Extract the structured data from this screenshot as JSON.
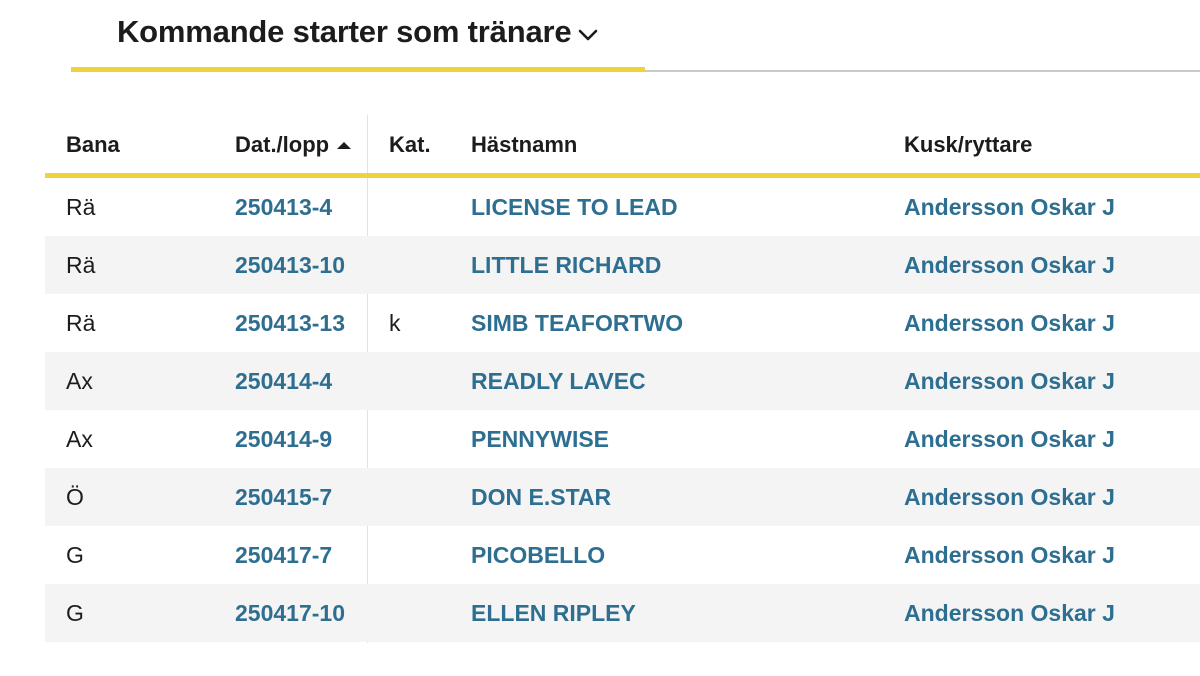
{
  "header": {
    "title": "Kommande starter som tränare",
    "dropdown_icon": "chevron-down-icon"
  },
  "colors": {
    "accent_yellow": "#f0d23a",
    "link_blue": "#2e6f91",
    "row_alt_bg": "#f4f4f4"
  },
  "table": {
    "columns": {
      "bana": "Bana",
      "date": "Dat./lopp",
      "kat": "Kat.",
      "horse": "Hästnamn",
      "kusk": "Kusk/ryttare"
    },
    "sort": {
      "column": "date",
      "direction": "ascending",
      "icon": "sort-ascending-icon"
    },
    "rows": [
      {
        "bana": "Rä",
        "date": "250413-4",
        "kat": "",
        "horse": "LICENSE TO LEAD",
        "kusk": "Andersson Oskar J"
      },
      {
        "bana": "Rä",
        "date": "250413-10",
        "kat": "",
        "horse": "LITTLE RICHARD",
        "kusk": "Andersson Oskar J"
      },
      {
        "bana": "Rä",
        "date": "250413-13",
        "kat": "k",
        "horse": "SIMB TEAFORTWO",
        "kusk": "Andersson Oskar J"
      },
      {
        "bana": "Ax",
        "date": "250414-4",
        "kat": "",
        "horse": "READLY LAVEC",
        "kusk": "Andersson Oskar J"
      },
      {
        "bana": "Ax",
        "date": "250414-9",
        "kat": "",
        "horse": "PENNYWISE",
        "kusk": "Andersson Oskar J"
      },
      {
        "bana": "Ö",
        "date": "250415-7",
        "kat": "",
        "horse": "DON E.STAR",
        "kusk": "Andersson Oskar J"
      },
      {
        "bana": "G",
        "date": "250417-7",
        "kat": "",
        "horse": "PICOBELLO",
        "kusk": "Andersson Oskar J"
      },
      {
        "bana": "G",
        "date": "250417-10",
        "kat": "",
        "horse": "ELLEN RIPLEY",
        "kusk": "Andersson Oskar J"
      }
    ]
  }
}
